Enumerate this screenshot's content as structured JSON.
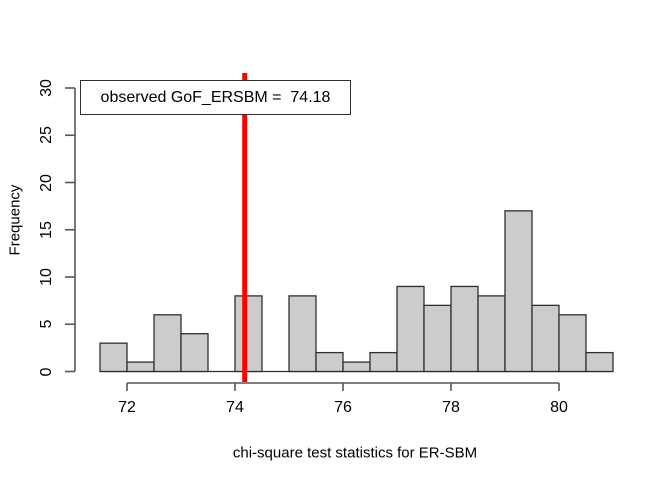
{
  "legend": {
    "text": "observed GoF_ERSBM =  74.18"
  },
  "chart_data": {
    "type": "bar",
    "subtype": "histogram",
    "title": "",
    "xlabel": "chi-square test statistics for ER-SBM",
    "ylabel": "Frequency",
    "bin_start": 71.5,
    "bin_width": 0.5,
    "bin_edges": [
      71.5,
      72,
      72.5,
      73,
      73.5,
      74,
      74.5,
      75,
      75.5,
      76,
      76.5,
      77,
      77.5,
      78,
      78.5,
      79,
      79.5,
      80,
      80.5,
      81
    ],
    "counts": [
      3,
      1,
      6,
      4,
      0,
      8,
      0,
      8,
      2,
      1,
      2,
      9,
      7,
      9,
      8,
      17,
      7,
      6,
      2
    ],
    "x_ticks": [
      72,
      74,
      76,
      78,
      80
    ],
    "y_ticks": [
      0,
      5,
      10,
      15,
      20,
      25,
      30
    ],
    "xlim": [
      71.5,
      81
    ],
    "ylim": [
      0,
      30
    ],
    "grid": "off",
    "legend_position": "top-left",
    "observed_line": {
      "label": "observed GoF_ERSBM",
      "value": 74.18,
      "color": "#ff0000"
    },
    "bar_fill": "#cccccc",
    "bar_border": "#2f2f2f",
    "axis_color": "#565656",
    "text_color": "#000000"
  }
}
